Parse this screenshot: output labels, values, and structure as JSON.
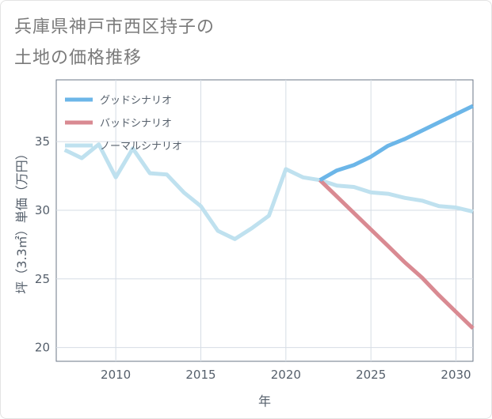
{
  "title_line1": "兵庫県神戸市西区持子の",
  "title_line2": "土地の価格推移",
  "chart_data": {
    "type": "line",
    "xlabel": "年",
    "ylabel": "坪（3.3㎡）単価（万円）",
    "xlim": [
      2006.5,
      2031
    ],
    "ylim": [
      19,
      39.5
    ],
    "x_ticks": [
      2010,
      2015,
      2020,
      2025,
      2030
    ],
    "y_ticks": [
      20,
      25,
      30,
      35
    ],
    "grid": true,
    "legend_position": "top-left",
    "series": [
      {
        "name": "グッドシナリオ",
        "color": "#6cb6e8",
        "x": [
          2022,
          2023,
          2024,
          2025,
          2026,
          2027,
          2028,
          2029,
          2030,
          2031
        ],
        "y": [
          32.2,
          32.9,
          33.3,
          33.9,
          34.7,
          35.2,
          35.8,
          36.4,
          37.0,
          37.6
        ]
      },
      {
        "name": "バッドシナリオ",
        "color": "#d98a92",
        "x": [
          2022,
          2023,
          2024,
          2025,
          2026,
          2027,
          2028,
          2029,
          2030,
          2031
        ],
        "y": [
          32.2,
          31.0,
          29.8,
          28.6,
          27.4,
          26.2,
          25.1,
          23.8,
          22.6,
          21.4
        ]
      },
      {
        "name": "ノーマルシナリオ",
        "color": "#bfe1ef",
        "x": [
          2007,
          2008,
          2009,
          2010,
          2011,
          2012,
          2013,
          2014,
          2015,
          2016,
          2017,
          2018,
          2019,
          2020,
          2021,
          2022,
          2023,
          2024,
          2025,
          2026,
          2027,
          2028,
          2029,
          2030,
          2031
        ],
        "y": [
          34.4,
          33.8,
          34.8,
          32.4,
          34.5,
          32.7,
          32.6,
          31.3,
          30.3,
          28.5,
          27.9,
          28.7,
          29.6,
          33.0,
          32.4,
          32.2,
          31.8,
          31.7,
          31.3,
          31.2,
          30.9,
          30.7,
          30.3,
          30.2,
          29.9
        ]
      }
    ]
  }
}
